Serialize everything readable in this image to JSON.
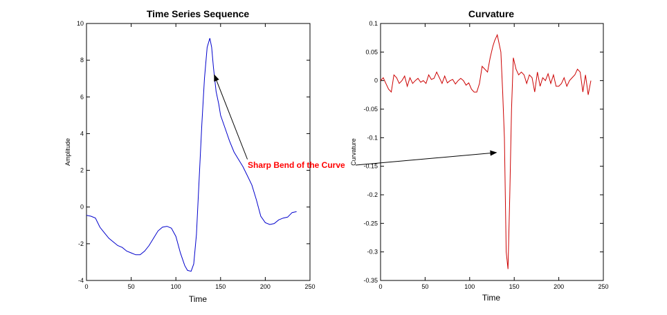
{
  "chart_data": [
    {
      "type": "line",
      "title": "Time Series Sequence",
      "xlabel": "Time",
      "ylabel": "Amplitude",
      "xlim": [
        0,
        250
      ],
      "ylim": [
        -4,
        10
      ],
      "xticks": [
        "0",
        "50",
        "100",
        "150",
        "200",
        "250"
      ],
      "yticks": [
        "-4",
        "-2",
        "0",
        "2",
        "4",
        "6",
        "8",
        "10"
      ],
      "color": "#0000cc",
      "series": [
        {
          "x": [
            0,
            5,
            10,
            15,
            20,
            25,
            30,
            35,
            40,
            45,
            50,
            55,
            60,
            65,
            70,
            75,
            80,
            85,
            90,
            95,
            100,
            105,
            110,
            113,
            117,
            120,
            123,
            126,
            129,
            132,
            135,
            138,
            140,
            142,
            145,
            148,
            150,
            155,
            160,
            165,
            170,
            175,
            180,
            185,
            190,
            195,
            200,
            205,
            210,
            215,
            220,
            225,
            230,
            235
          ],
          "y": [
            -0.45,
            -0.5,
            -0.6,
            -1.1,
            -1.4,
            -1.7,
            -1.9,
            -2.1,
            -2.2,
            -2.4,
            -2.5,
            -2.6,
            -2.6,
            -2.4,
            -2.1,
            -1.7,
            -1.3,
            -1.1,
            -1.05,
            -1.15,
            -1.6,
            -2.5,
            -3.2,
            -3.45,
            -3.5,
            -3.1,
            -1.5,
            1.5,
            4.5,
            7.0,
            8.7,
            9.2,
            8.7,
            7.6,
            6.3,
            5.6,
            5.0,
            4.3,
            3.6,
            3.0,
            2.6,
            2.2,
            1.7,
            1.2,
            0.4,
            -0.5,
            -0.85,
            -0.95,
            -0.9,
            -0.7,
            -0.6,
            -0.55,
            -0.3,
            -0.25
          ]
        }
      ]
    },
    {
      "type": "line",
      "title": "Curvature",
      "xlabel": "Time",
      "ylabel": "Curvature",
      "xlim": [
        0,
        250
      ],
      "ylim": [
        -0.35,
        0.1
      ],
      "xticks": [
        "0",
        "50",
        "100",
        "150",
        "200",
        "250"
      ],
      "yticks": [
        "-0.35",
        "-0.3",
        "-0.25",
        "-0.2",
        "-0.15",
        "-0.1",
        "-0.05",
        "0",
        "0.05",
        "0.1"
      ],
      "color": "#cc0000",
      "series": [
        {
          "x": [
            0,
            3,
            6,
            9,
            12,
            15,
            18,
            21,
            24,
            27,
            30,
            33,
            36,
            39,
            42,
            45,
            48,
            51,
            54,
            57,
            60,
            63,
            66,
            69,
            72,
            75,
            78,
            81,
            84,
            87,
            90,
            93,
            96,
            99,
            102,
            105,
            108,
            111,
            114,
            117,
            120,
            123,
            126,
            128,
            131,
            133,
            135,
            137,
            139,
            140,
            141,
            143,
            145,
            147,
            149,
            152,
            155,
            158,
            161,
            164,
            167,
            170,
            173,
            176,
            179,
            182,
            185,
            188,
            191,
            194,
            197,
            200,
            203,
            206,
            209,
            212,
            215,
            218,
            221,
            224,
            227,
            230,
            233,
            236
          ],
          "y": [
            0.0,
            0.005,
            -0.005,
            -0.015,
            -0.02,
            0.01,
            0.005,
            -0.005,
            0.0,
            0.008,
            -0.01,
            0.005,
            -0.005,
            0.0,
            0.004,
            -0.003,
            0.0,
            -0.005,
            0.01,
            0.002,
            0.004,
            0.015,
            0.005,
            -0.005,
            0.008,
            -0.004,
            0.0,
            0.002,
            -0.006,
            0.0,
            0.004,
            0.0,
            -0.008,
            -0.004,
            -0.015,
            -0.02,
            -0.02,
            -0.005,
            0.025,
            0.02,
            0.015,
            0.04,
            0.06,
            0.07,
            0.08,
            0.065,
            0.05,
            -0.02,
            -0.1,
            -0.2,
            -0.3,
            -0.33,
            -0.2,
            -0.05,
            0.04,
            0.02,
            0.01,
            0.015,
            0.01,
            -0.005,
            0.01,
            0.005,
            -0.02,
            0.015,
            -0.01,
            0.005,
            0.0,
            0.012,
            -0.005,
            0.01,
            -0.01,
            -0.01,
            -0.005,
            0.005,
            -0.01,
            0.0,
            0.005,
            0.01,
            0.02,
            0.015,
            -0.02,
            0.01,
            -0.025,
            0.0
          ]
        }
      ]
    }
  ],
  "annotation": {
    "text": "Sharp Bend of the Curve",
    "color": "#ff0000",
    "arrow_to_left": {
      "x": 143,
      "y": 7.2
    },
    "arrow_to_right": {
      "x": 130,
      "y": -0.126
    },
    "arrow_from_left": {
      "x": 180,
      "y": 2.6
    },
    "arrow_from_right": {
      "x": -28,
      "y": -0.148
    }
  }
}
